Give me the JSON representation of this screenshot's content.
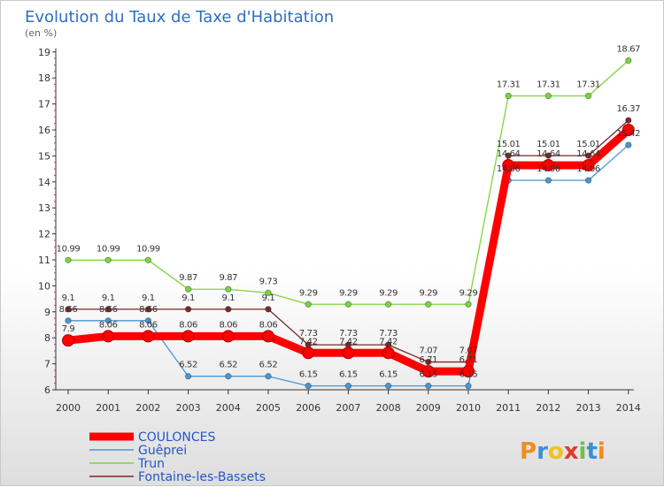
{
  "chart_data": {
    "type": "line",
    "title": "Evolution du Taux de Taxe d'Habitation",
    "subtitle": "(en %)",
    "categories": [
      "2000",
      "2001",
      "2002",
      "2003",
      "2004",
      "2005",
      "2006",
      "2007",
      "2008",
      "2009",
      "2010",
      "2011",
      "2012",
      "2013",
      "2014"
    ],
    "y_ticks": [
      "6",
      "7",
      "8",
      "9",
      "10",
      "11",
      "12",
      "13",
      "14",
      "15",
      "16",
      "17",
      "18",
      "19"
    ],
    "ylim": [
      6,
      19
    ],
    "grid": false,
    "legend_position": "bottom-left",
    "series": [
      {
        "name": "COULONCES",
        "color": "#ff0000",
        "values": [
          7.9,
          8.06,
          8.06,
          8.06,
          8.06,
          8.06,
          7.42,
          7.42,
          7.42,
          6.71,
          6.71,
          14.64,
          14.64,
          14.64,
          16.0
        ],
        "labels": [
          "7.9",
          "8.06",
          "8.06",
          "8.06",
          "8.06",
          "8.06",
          "7.42",
          "7.42",
          "7.42",
          "6.71",
          "6.71",
          "14.64",
          "14.64",
          "14.64",
          ""
        ]
      },
      {
        "name": "Guêprei",
        "color": "#4a97d4",
        "values": [
          8.66,
          8.66,
          8.66,
          6.52,
          6.52,
          6.52,
          6.15,
          6.15,
          6.15,
          6.15,
          6.15,
          14.06,
          14.06,
          14.06,
          15.42
        ],
        "labels": [
          "8.66",
          "8.66",
          "8.66",
          "6.52",
          "6.52",
          "6.52",
          "6.15",
          "6.15",
          "6.15",
          "6.15",
          "6.15",
          "14.06",
          "14.06",
          "14.06",
          "15.42"
        ]
      },
      {
        "name": "Trun",
        "color": "#7cd63e",
        "values": [
          10.99,
          10.99,
          10.99,
          9.87,
          9.87,
          9.73,
          9.29,
          9.29,
          9.29,
          9.29,
          9.29,
          17.31,
          17.31,
          17.31,
          18.67
        ],
        "labels": [
          "10.99",
          "10.99",
          "10.99",
          "9.87",
          "9.87",
          "9.73",
          "9.29",
          "9.29",
          "9.29",
          "9.29",
          "9.29",
          "17.31",
          "17.31",
          "17.31",
          "18.67"
        ]
      },
      {
        "name": "Fontaine-les-Bassets",
        "color": "#7a2a2a",
        "values": [
          9.1,
          9.1,
          9.1,
          9.1,
          9.1,
          9.1,
          7.73,
          7.73,
          7.73,
          7.07,
          7.07,
          15.01,
          15.01,
          15.01,
          16.37
        ],
        "labels": [
          "9.1",
          "9.1",
          "9.1",
          "9.1",
          "9.1",
          "9.1",
          "7.73",
          "7.73",
          "7.73",
          "7.07",
          "7.07",
          "15.01",
          "15.01",
          "15.01",
          "16.37"
        ]
      }
    ]
  },
  "brand": {
    "letters": [
      "P",
      "r",
      "o",
      "x",
      "i",
      "t",
      "i"
    ],
    "colors": [
      "#f28c1c",
      "#3b8fd6",
      "#f2c21c",
      "#e03a2e",
      "#6cc24a",
      "#3b8fd6",
      "#f28c1c"
    ]
  }
}
